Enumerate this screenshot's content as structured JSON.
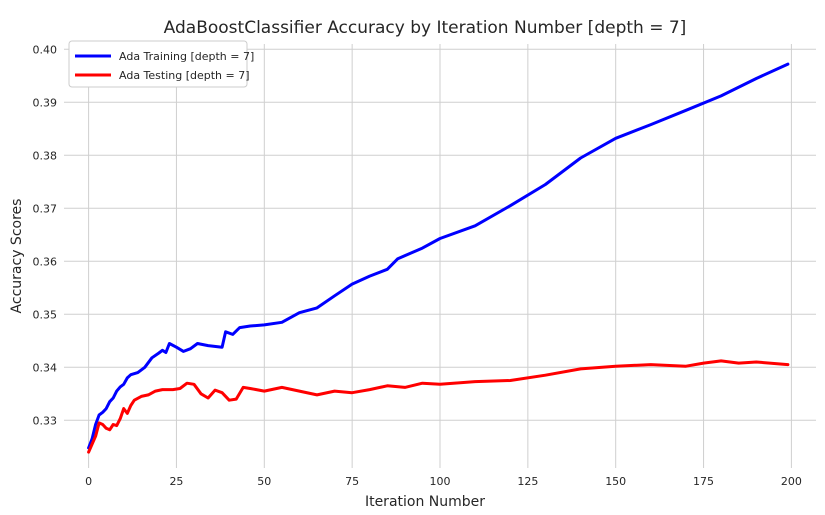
{
  "chart_data": {
    "type": "line",
    "title": "AdaBoostClassifier Accuracy by Iteration Number [depth = 7]",
    "xlabel": "Iteration Number",
    "ylabel": "Accuracy Scores",
    "xlim": [
      -7,
      207
    ],
    "ylim": [
      0.321,
      0.401
    ],
    "xticks": [
      0,
      25,
      50,
      75,
      100,
      125,
      150,
      175,
      200
    ],
    "yticks": [
      0.33,
      0.34,
      0.35,
      0.36,
      0.37,
      0.38,
      0.39,
      0.4
    ],
    "xtick_labels": [
      "0",
      "25",
      "50",
      "75",
      "100",
      "125",
      "150",
      "175",
      "200"
    ],
    "ytick_labels": [
      "0.33",
      "0.34",
      "0.35",
      "0.36",
      "0.37",
      "0.38",
      "0.39",
      "0.40"
    ],
    "grid": true,
    "legend_position": "upper-left",
    "series": [
      {
        "name": "Ada Training [depth = 7]",
        "color": "#0000ff",
        "points": [
          [
            0,
            0.3248
          ],
          [
            1,
            0.3265
          ],
          [
            2,
            0.3292
          ],
          [
            3,
            0.331
          ],
          [
            4,
            0.3315
          ],
          [
            5,
            0.3322
          ],
          [
            6,
            0.3335
          ],
          [
            7,
            0.3342
          ],
          [
            8,
            0.3355
          ],
          [
            9,
            0.3363
          ],
          [
            10,
            0.3368
          ],
          [
            11,
            0.338
          ],
          [
            12,
            0.3386
          ],
          [
            14,
            0.339
          ],
          [
            16,
            0.34
          ],
          [
            18,
            0.3418
          ],
          [
            20,
            0.3427
          ],
          [
            21,
            0.3432
          ],
          [
            22,
            0.3428
          ],
          [
            23,
            0.3445
          ],
          [
            25,
            0.3438
          ],
          [
            27,
            0.343
          ],
          [
            29,
            0.3435
          ],
          [
            31,
            0.3445
          ],
          [
            34,
            0.3441
          ],
          [
            38,
            0.3438
          ],
          [
            39,
            0.3467
          ],
          [
            41,
            0.3462
          ],
          [
            43,
            0.3475
          ],
          [
            46,
            0.3478
          ],
          [
            50,
            0.348
          ],
          [
            55,
            0.3485
          ],
          [
            60,
            0.3503
          ],
          [
            65,
            0.3512
          ],
          [
            70,
            0.3535
          ],
          [
            75,
            0.3557
          ],
          [
            80,
            0.3572
          ],
          [
            85,
            0.3585
          ],
          [
            88,
            0.3605
          ],
          [
            95,
            0.3625
          ],
          [
            100,
            0.3643
          ],
          [
            110,
            0.3667
          ],
          [
            120,
            0.3705
          ],
          [
            130,
            0.3745
          ],
          [
            140,
            0.3795
          ],
          [
            150,
            0.3832
          ],
          [
            160,
            0.3858
          ],
          [
            170,
            0.3885
          ],
          [
            180,
            0.3912
          ],
          [
            190,
            0.3945
          ],
          [
            199,
            0.3972
          ]
        ]
      },
      {
        "name": "Ada Testing [depth = 7]",
        "color": "#ff0000",
        "points": [
          [
            0,
            0.324
          ],
          [
            1,
            0.3255
          ],
          [
            2,
            0.327
          ],
          [
            3,
            0.3295
          ],
          [
            4,
            0.3292
          ],
          [
            5,
            0.3285
          ],
          [
            6,
            0.3282
          ],
          [
            7,
            0.3292
          ],
          [
            8,
            0.329
          ],
          [
            9,
            0.3303
          ],
          [
            10,
            0.3322
          ],
          [
            11,
            0.3313
          ],
          [
            12,
            0.3328
          ],
          [
            13,
            0.3338
          ],
          [
            15,
            0.3345
          ],
          [
            17,
            0.3348
          ],
          [
            19,
            0.3355
          ],
          [
            21,
            0.3358
          ],
          [
            24,
            0.3358
          ],
          [
            26,
            0.336
          ],
          [
            28,
            0.337
          ],
          [
            30,
            0.3368
          ],
          [
            32,
            0.335
          ],
          [
            34,
            0.3342
          ],
          [
            36,
            0.3357
          ],
          [
            38,
            0.3352
          ],
          [
            40,
            0.3338
          ],
          [
            42,
            0.334
          ],
          [
            44,
            0.3362
          ],
          [
            46,
            0.336
          ],
          [
            50,
            0.3355
          ],
          [
            55,
            0.3362
          ],
          [
            60,
            0.3355
          ],
          [
            65,
            0.3348
          ],
          [
            70,
            0.3355
          ],
          [
            75,
            0.3352
          ],
          [
            80,
            0.3358
          ],
          [
            85,
            0.3365
          ],
          [
            90,
            0.3362
          ],
          [
            95,
            0.337
          ],
          [
            100,
            0.3368
          ],
          [
            110,
            0.3373
          ],
          [
            120,
            0.3375
          ],
          [
            130,
            0.3385
          ],
          [
            140,
            0.3397
          ],
          [
            150,
            0.3402
          ],
          [
            160,
            0.3405
          ],
          [
            170,
            0.3402
          ],
          [
            175,
            0.3408
          ],
          [
            180,
            0.3412
          ],
          [
            185,
            0.3408
          ],
          [
            190,
            0.341
          ],
          [
            199,
            0.3405
          ]
        ]
      }
    ]
  }
}
